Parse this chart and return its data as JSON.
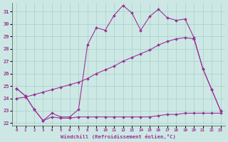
{
  "xlabel": "Windchill (Refroidissement éolien,°C)",
  "xlim": [
    -0.5,
    23.5
  ],
  "ylim": [
    21.8,
    31.7
  ],
  "yticks": [
    22,
    23,
    24,
    25,
    26,
    27,
    28,
    29,
    30,
    31
  ],
  "xticks": [
    0,
    1,
    2,
    3,
    4,
    5,
    6,
    7,
    8,
    9,
    10,
    11,
    12,
    13,
    14,
    15,
    16,
    17,
    18,
    19,
    20,
    21,
    22,
    23
  ],
  "bg_color": "#cde8e4",
  "grid_color": "#aad4ce",
  "line_color": "#993399",
  "series": [
    {
      "x": [
        0,
        1,
        2,
        3,
        4,
        5,
        6,
        7,
        8,
        9,
        10,
        11,
        12,
        13,
        14,
        15,
        16,
        17,
        18,
        19,
        20,
        21,
        22,
        23
      ],
      "y": [
        24.8,
        24.2,
        23.1,
        22.2,
        22.8,
        22.5,
        22.5,
        23.1,
        28.3,
        29.7,
        29.5,
        30.7,
        31.5,
        30.9,
        29.5,
        30.6,
        31.2,
        30.5,
        30.3,
        30.4,
        28.9,
        26.4,
        24.7,
        23.0
      ]
    },
    {
      "x": [
        0,
        1,
        2,
        3,
        4,
        5,
        6,
        7,
        8,
        9,
        10,
        11,
        12,
        13,
        14,
        15,
        16,
        17,
        18,
        19,
        20,
        21,
        22,
        23
      ],
      "y": [
        24.0,
        24.1,
        24.3,
        24.5,
        24.7,
        24.9,
        25.1,
        25.3,
        25.6,
        26.0,
        26.3,
        26.6,
        27.0,
        27.3,
        27.6,
        27.9,
        28.3,
        28.6,
        28.8,
        28.9,
        28.8,
        26.4,
        24.7,
        23.0
      ]
    },
    {
      "x": [
        0,
        1,
        2,
        3,
        4,
        5,
        6,
        7,
        8,
        9,
        10,
        11,
        12,
        13,
        14,
        15,
        16,
        17,
        18,
        19,
        20,
        21,
        22,
        23
      ],
      "y": [
        24.8,
        24.2,
        23.1,
        22.2,
        22.5,
        22.4,
        22.4,
        22.5,
        22.5,
        22.5,
        22.5,
        22.5,
        22.5,
        22.5,
        22.5,
        22.5,
        22.6,
        22.7,
        22.7,
        22.8,
        22.8,
        22.8,
        22.8,
        22.8
      ]
    }
  ]
}
